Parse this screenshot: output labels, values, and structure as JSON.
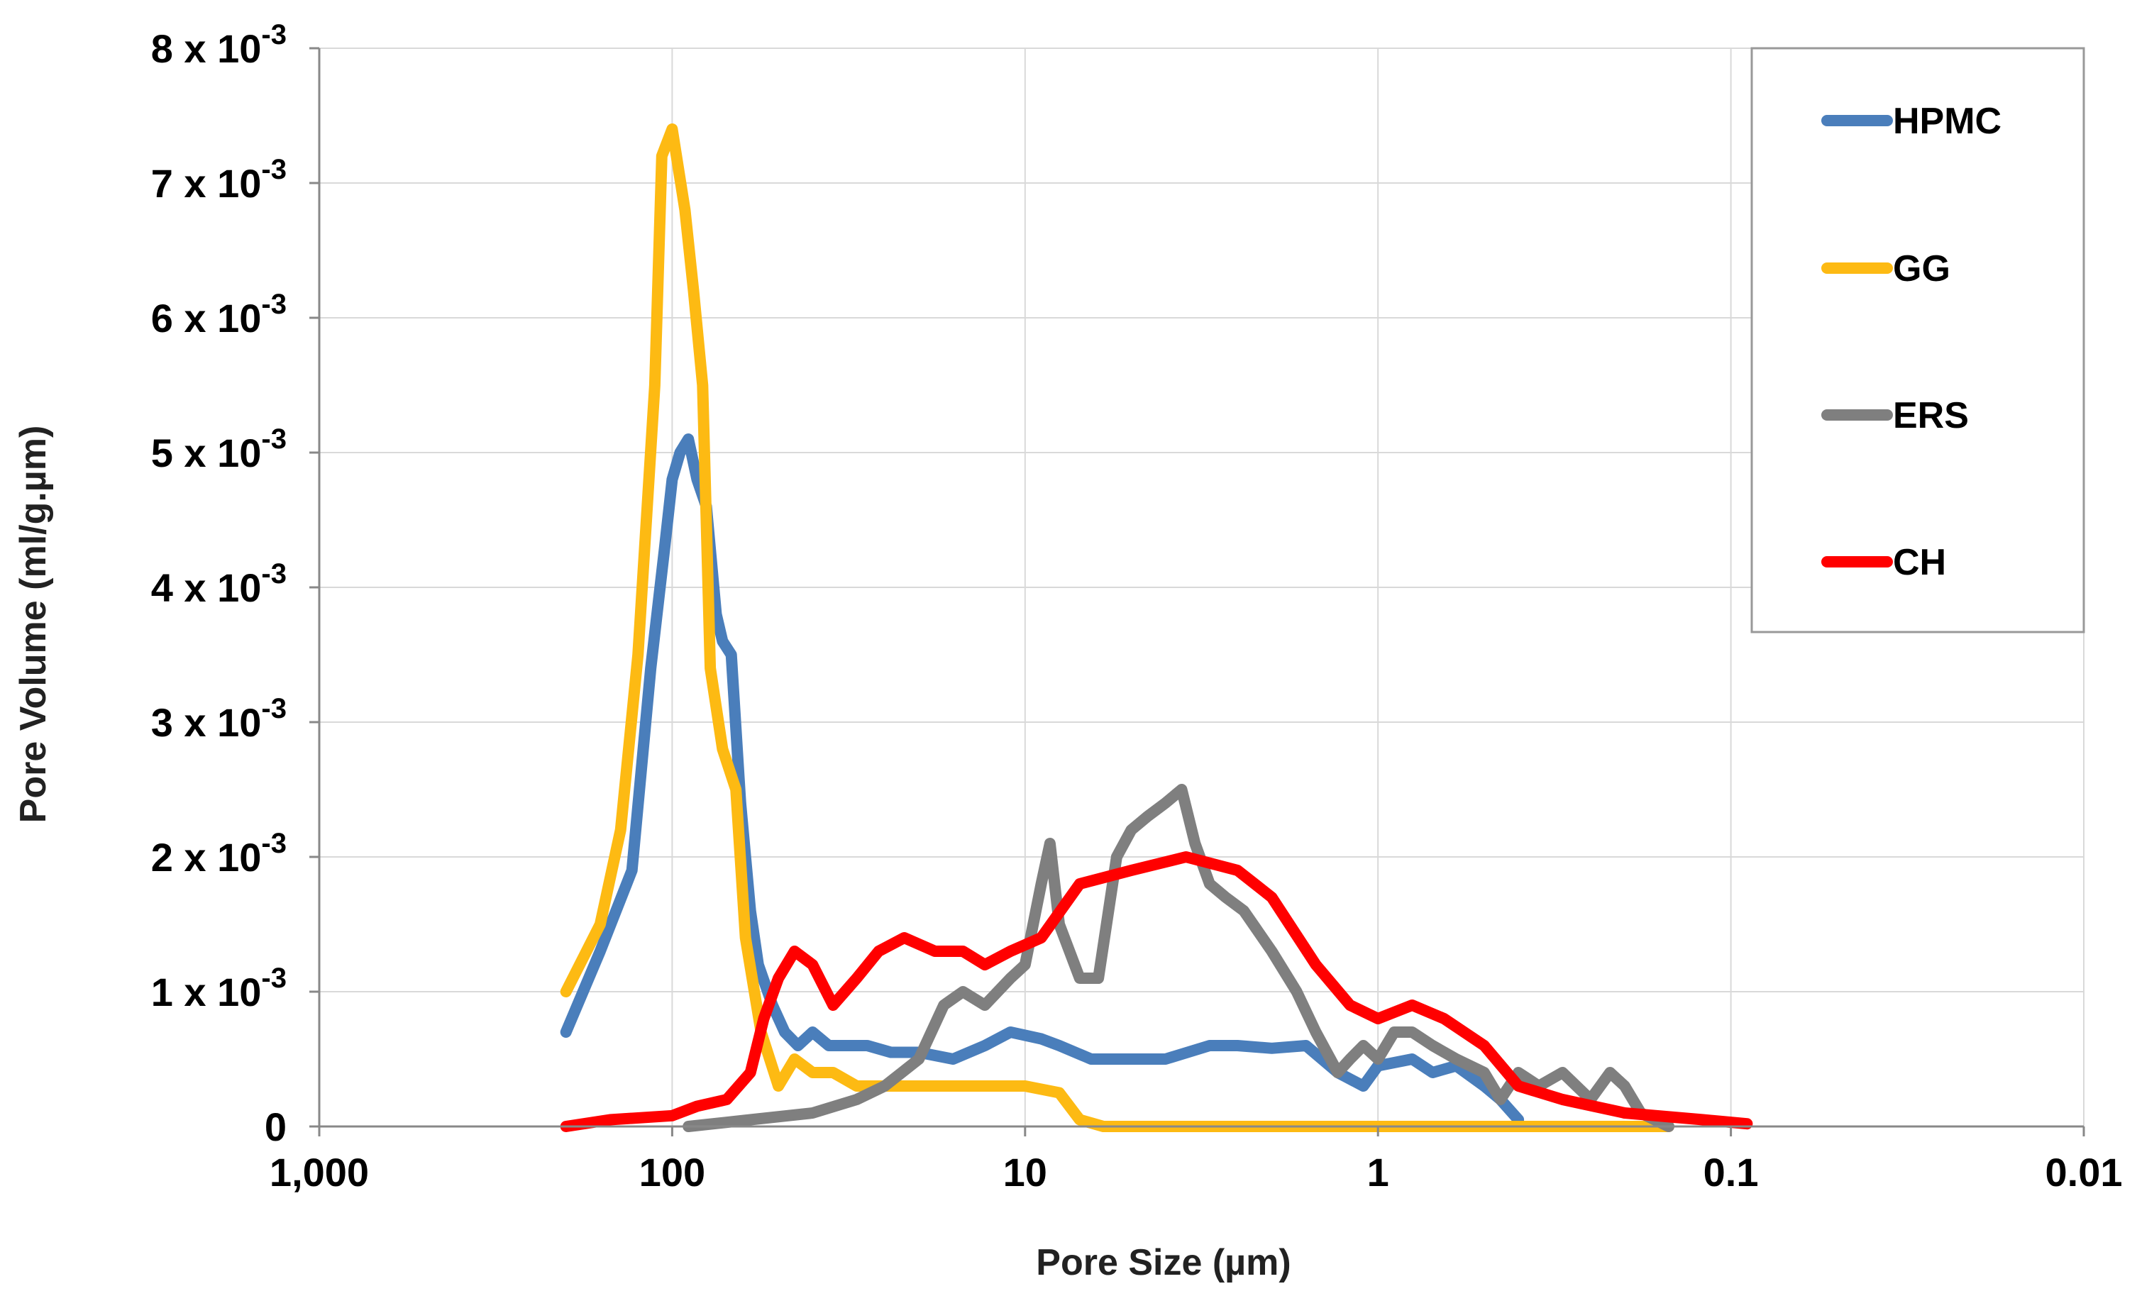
{
  "chart_data": {
    "type": "line",
    "title": "",
    "xlabel": "Pore Size (µm)",
    "ylabel": "Pore Volume (ml/g.µm)",
    "x_scale": "log",
    "x_reversed": true,
    "xlim": [
      1000,
      0.01
    ],
    "ylim": [
      0,
      0.008
    ],
    "x_tick_labels": [
      "1,000",
      "100",
      "10",
      "1",
      "0.1",
      "0.01"
    ],
    "y_tick_labels": [
      {
        "mantissa": "0",
        "exponent": ""
      },
      {
        "mantissa": "1 x 10",
        "exponent": "-3"
      },
      {
        "mantissa": "2 x 10",
        "exponent": "-3"
      },
      {
        "mantissa": "3 x 10",
        "exponent": "-3"
      },
      {
        "mantissa": "4 x 10",
        "exponent": "-3"
      },
      {
        "mantissa": "5 x 10",
        "exponent": "-3"
      },
      {
        "mantissa": "6 x 10",
        "exponent": "-3"
      },
      {
        "mantissa": "7 x 10",
        "exponent": "-3"
      },
      {
        "mantissa": "8 x 10",
        "exponent": "-3"
      }
    ],
    "grid": true,
    "legend_position": "top-right",
    "series": [
      {
        "name": "HPMC",
        "color": "#4a7ebb",
        "points": [
          [
            200,
            0.0007
          ],
          [
            160,
            0.0013
          ],
          [
            130,
            0.0019
          ],
          [
            115,
            0.0034
          ],
          [
            105,
            0.0043
          ],
          [
            100,
            0.0048
          ],
          [
            95,
            0.005
          ],
          [
            90,
            0.0051
          ],
          [
            85,
            0.0048
          ],
          [
            80,
            0.0046
          ],
          [
            75,
            0.0038
          ],
          [
            72,
            0.0036
          ],
          [
            68,
            0.0035
          ],
          [
            64,
            0.0024
          ],
          [
            60,
            0.0016
          ],
          [
            57,
            0.0012
          ],
          [
            52,
            0.0009
          ],
          [
            48,
            0.0007
          ],
          [
            44,
            0.0006
          ],
          [
            40,
            0.0007
          ],
          [
            36,
            0.0006
          ],
          [
            32,
            0.0006
          ],
          [
            28,
            0.0006
          ],
          [
            24,
            0.00055
          ],
          [
            20,
            0.00055
          ],
          [
            16,
            0.0005
          ],
          [
            13,
            0.0006
          ],
          [
            11,
            0.0007
          ],
          [
            9,
            0.00065
          ],
          [
            8,
            0.0006
          ],
          [
            6.5,
            0.0005
          ],
          [
            5,
            0.0005
          ],
          [
            4,
            0.0005
          ],
          [
            3,
            0.0006
          ],
          [
            2.5,
            0.0006
          ],
          [
            2,
            0.00058
          ],
          [
            1.6,
            0.0006
          ],
          [
            1.3,
            0.0004
          ],
          [
            1.1,
            0.0003
          ],
          [
            1,
            0.00045
          ],
          [
            0.8,
            0.0005
          ],
          [
            0.7,
            0.0004
          ],
          [
            0.6,
            0.00045
          ],
          [
            0.5,
            0.0003
          ],
          [
            0.45,
            0.0002
          ],
          [
            0.4,
            5e-05
          ]
        ]
      },
      {
        "name": "GG",
        "color": "#fdba13",
        "points": [
          [
            200,
            0.001
          ],
          [
            160,
            0.0015
          ],
          [
            140,
            0.0022
          ],
          [
            125,
            0.0035
          ],
          [
            112,
            0.0055
          ],
          [
            107,
            0.0072
          ],
          [
            100,
            0.0074
          ],
          [
            92,
            0.0068
          ],
          [
            87,
            0.0062
          ],
          [
            82,
            0.0055
          ],
          [
            78,
            0.0034
          ],
          [
            72,
            0.0028
          ],
          [
            66,
            0.0025
          ],
          [
            62,
            0.0014
          ],
          [
            56,
            0.0007
          ],
          [
            50,
            0.0003
          ],
          [
            45,
            0.0005
          ],
          [
            40,
            0.0004
          ],
          [
            35,
            0.0004
          ],
          [
            30,
            0.0003
          ],
          [
            25,
            0.0003
          ],
          [
            20,
            0.0003
          ],
          [
            15,
            0.0003
          ],
          [
            10,
            0.0003
          ],
          [
            8,
            0.00025
          ],
          [
            7,
            5e-05
          ],
          [
            6,
            0
          ],
          [
            1,
            0
          ],
          [
            0.2,
            0
          ],
          [
            0.15,
            0
          ]
        ]
      },
      {
        "name": "ERS",
        "color": "#7f7f7f",
        "points": [
          [
            90,
            0
          ],
          [
            60,
            5e-05
          ],
          [
            40,
            0.0001
          ],
          [
            30,
            0.0002
          ],
          [
            25,
            0.0003
          ],
          [
            20,
            0.0005
          ],
          [
            17,
            0.0009
          ],
          [
            15,
            0.001
          ],
          [
            13,
            0.0009
          ],
          [
            11,
            0.0011
          ],
          [
            10,
            0.0012
          ],
          [
            9,
            0.0018
          ],
          [
            8.5,
            0.0021
          ],
          [
            8,
            0.0015
          ],
          [
            7,
            0.0011
          ],
          [
            6.2,
            0.0011
          ],
          [
            5.5,
            0.002
          ],
          [
            5,
            0.0022
          ],
          [
            4.5,
            0.0023
          ],
          [
            4,
            0.0024
          ],
          [
            3.6,
            0.0025
          ],
          [
            3.3,
            0.0021
          ],
          [
            3,
            0.0018
          ],
          [
            2.7,
            0.0017
          ],
          [
            2.4,
            0.0016
          ],
          [
            2,
            0.0013
          ],
          [
            1.7,
            0.001
          ],
          [
            1.5,
            0.0007
          ],
          [
            1.3,
            0.0004
          ],
          [
            1.2,
            0.0005
          ],
          [
            1.1,
            0.0006
          ],
          [
            1,
            0.0005
          ],
          [
            0.9,
            0.0007
          ],
          [
            0.8,
            0.0007
          ],
          [
            0.7,
            0.0006
          ],
          [
            0.6,
            0.0005
          ],
          [
            0.5,
            0.0004
          ],
          [
            0.45,
            0.0002
          ],
          [
            0.4,
            0.0004
          ],
          [
            0.35,
            0.0003
          ],
          [
            0.3,
            0.0004
          ],
          [
            0.25,
            0.0002
          ],
          [
            0.22,
            0.0004
          ],
          [
            0.2,
            0.0003
          ],
          [
            0.18,
            0.0001
          ],
          [
            0.15,
            0
          ]
        ]
      },
      {
        "name": "CH",
        "color": "#ff0000",
        "points": [
          [
            200,
            0
          ],
          [
            150,
            5e-05
          ],
          [
            100,
            8e-05
          ],
          [
            85,
            0.00015
          ],
          [
            70,
            0.0002
          ],
          [
            60,
            0.0004
          ],
          [
            55,
            0.0008
          ],
          [
            50,
            0.0011
          ],
          [
            45,
            0.0013
          ],
          [
            40,
            0.0012
          ],
          [
            35,
            0.0009
          ],
          [
            30,
            0.0011
          ],
          [
            26,
            0.0013
          ],
          [
            22,
            0.0014
          ],
          [
            18,
            0.0013
          ],
          [
            15,
            0.0013
          ],
          [
            13,
            0.0012
          ],
          [
            11,
            0.0013
          ],
          [
            9,
            0.0014
          ],
          [
            7,
            0.0018
          ],
          [
            5,
            0.0019
          ],
          [
            3.5,
            0.002
          ],
          [
            2.5,
            0.0019
          ],
          [
            2,
            0.0017
          ],
          [
            1.5,
            0.0012
          ],
          [
            1.2,
            0.0009
          ],
          [
            1,
            0.0008
          ],
          [
            0.8,
            0.0009
          ],
          [
            0.65,
            0.0008
          ],
          [
            0.5,
            0.0006
          ],
          [
            0.4,
            0.0003
          ],
          [
            0.3,
            0.0002
          ],
          [
            0.2,
            0.0001
          ],
          [
            0.12,
            5e-05
          ],
          [
            0.09,
            2e-05
          ]
        ]
      }
    ]
  }
}
